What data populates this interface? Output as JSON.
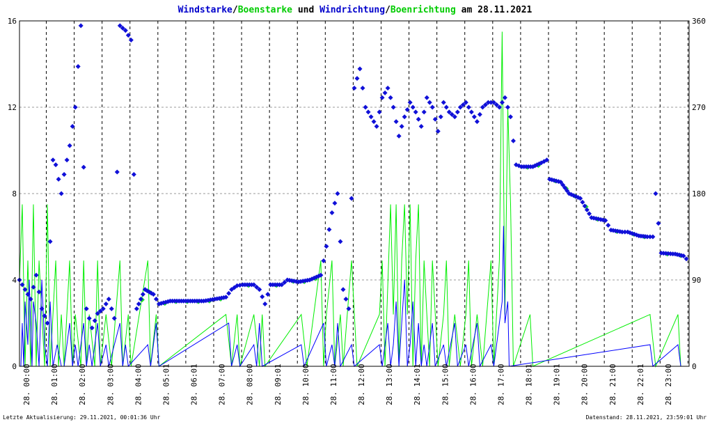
{
  "colors": {
    "wind": "#0000ff",
    "gust": "#00ee00",
    "direction": "#1010d8",
    "gust_direction": "#22ee22",
    "grid": "#000000"
  },
  "chart_data": {
    "type": "line",
    "title_parts": [
      "Windstarke",
      "/",
      "Boenstarke",
      " und ",
      "Windrichtung",
      "/",
      "Boenrichtung",
      " am 28.11.2021"
    ],
    "y_left": {
      "min": 0,
      "max": 16,
      "ticks": [
        "0",
        "4",
        "8",
        "12",
        "16"
      ]
    },
    "y_right": {
      "min": 0,
      "max": 360,
      "ticks": [
        "0",
        "90",
        "180",
        "270",
        "360"
      ]
    },
    "x_ticks": [
      "28. 00:00",
      "28. 01:00",
      "28. 02:00",
      "28. 03:00",
      "28. 04:00",
      "28. 05:01",
      "28. 06:01",
      "28. 07:00",
      "28. 08:00",
      "28. 09:01",
      "28. 10:00",
      "28. 11:00",
      "28. 12:00",
      "28. 13:00",
      "28. 14:01",
      "28. 15:00",
      "28. 16:00",
      "28. 17:00",
      "28. 18:01",
      "28. 19:01",
      "28. 20:00",
      "28. 21:00",
      "28. 22:01",
      "28. 23:00"
    ],
    "x_range_hours": [
      0,
      24
    ],
    "series": [
      {
        "name": "Windstarke",
        "kind": "speed",
        "points": [
          [
            0.05,
            0
          ],
          [
            0.1,
            2
          ],
          [
            0.15,
            0
          ],
          [
            0.2,
            3
          ],
          [
            0.3,
            1
          ],
          [
            0.35,
            4
          ],
          [
            0.45,
            0
          ],
          [
            0.5,
            3
          ],
          [
            0.6,
            2
          ],
          [
            0.7,
            0
          ],
          [
            0.8,
            4
          ],
          [
            0.9,
            1
          ],
          [
            1.0,
            0
          ],
          [
            1.1,
            3
          ],
          [
            1.2,
            0
          ],
          [
            1.35,
            1
          ],
          [
            1.5,
            0
          ],
          [
            1.6,
            0
          ],
          [
            1.8,
            2
          ],
          [
            1.9,
            0
          ],
          [
            2.0,
            1
          ],
          [
            2.1,
            0
          ],
          [
            2.3,
            2
          ],
          [
            2.4,
            0
          ],
          [
            2.5,
            1
          ],
          [
            2.6,
            0
          ],
          [
            2.8,
            2
          ],
          [
            2.9,
            0
          ],
          [
            3.1,
            1
          ],
          [
            3.2,
            0
          ],
          [
            3.6,
            2
          ],
          [
            3.7,
            0
          ],
          [
            3.8,
            1
          ],
          [
            3.9,
            0
          ],
          [
            4.6,
            1
          ],
          [
            4.7,
            0
          ],
          [
            4.9,
            2
          ],
          [
            5.0,
            0
          ],
          [
            7.5,
            2
          ],
          [
            7.6,
            0
          ],
          [
            7.8,
            1
          ],
          [
            7.9,
            0
          ],
          [
            8.4,
            1
          ],
          [
            8.5,
            0
          ],
          [
            8.6,
            2
          ],
          [
            8.7,
            0
          ],
          [
            10.1,
            1
          ],
          [
            10.2,
            0
          ],
          [
            10.9,
            2
          ],
          [
            11.0,
            0
          ],
          [
            11.2,
            1
          ],
          [
            11.3,
            0
          ],
          [
            11.4,
            2
          ],
          [
            11.5,
            0
          ],
          [
            11.9,
            1
          ],
          [
            12.0,
            0
          ],
          [
            12.9,
            1
          ],
          [
            13.0,
            0
          ],
          [
            13.2,
            2
          ],
          [
            13.3,
            0
          ],
          [
            13.4,
            1
          ],
          [
            13.5,
            3
          ],
          [
            13.6,
            0
          ],
          [
            13.7,
            2
          ],
          [
            13.8,
            4
          ],
          [
            13.9,
            0
          ],
          [
            14.0,
            1
          ],
          [
            14.1,
            3
          ],
          [
            14.2,
            0
          ],
          [
            14.3,
            2
          ],
          [
            14.4,
            0
          ],
          [
            14.5,
            1
          ],
          [
            14.6,
            0
          ],
          [
            14.8,
            2
          ],
          [
            14.9,
            0
          ],
          [
            15.2,
            1
          ],
          [
            15.3,
            0
          ],
          [
            15.6,
            2
          ],
          [
            15.7,
            0
          ],
          [
            16.0,
            1
          ],
          [
            16.1,
            0
          ],
          [
            16.4,
            2
          ],
          [
            16.5,
            0
          ],
          [
            16.9,
            1
          ],
          [
            17.0,
            0
          ],
          [
            17.3,
            3
          ],
          [
            17.35,
            6.5
          ],
          [
            17.4,
            2
          ],
          [
            17.5,
            3
          ],
          [
            17.55,
            0
          ],
          [
            22.6,
            1
          ],
          [
            22.7,
            0
          ],
          [
            23.6,
            1
          ],
          [
            23.7,
            0
          ]
        ]
      },
      {
        "name": "Boenstarke",
        "kind": "gust",
        "points": [
          [
            0.0,
            4
          ],
          [
            0.1,
            7.5
          ],
          [
            0.2,
            0
          ],
          [
            0.3,
            4.9
          ],
          [
            0.4,
            0
          ],
          [
            0.5,
            7.5
          ],
          [
            0.6,
            0
          ],
          [
            0.7,
            4.9
          ],
          [
            0.8,
            2.4
          ],
          [
            0.9,
            0
          ],
          [
            1.0,
            7.5
          ],
          [
            1.1,
            0
          ],
          [
            1.2,
            2.4
          ],
          [
            1.3,
            4.9
          ],
          [
            1.4,
            0
          ],
          [
            1.5,
            2.4
          ],
          [
            1.6,
            0
          ],
          [
            1.8,
            4.9
          ],
          [
            1.9,
            0
          ],
          [
            2.0,
            2.4
          ],
          [
            2.2,
            0
          ],
          [
            2.3,
            4.9
          ],
          [
            2.4,
            0
          ],
          [
            2.5,
            2.4
          ],
          [
            2.7,
            0
          ],
          [
            2.8,
            4.9
          ],
          [
            2.9,
            0
          ],
          [
            3.1,
            2.4
          ],
          [
            3.3,
            0
          ],
          [
            3.6,
            4.9
          ],
          [
            3.7,
            0
          ],
          [
            3.9,
            2.4
          ],
          [
            4.0,
            0
          ],
          [
            4.6,
            4.9
          ],
          [
            4.7,
            0
          ],
          [
            4.9,
            2.4
          ],
          [
            5.0,
            0
          ],
          [
            7.4,
            2.4
          ],
          [
            7.6,
            0
          ],
          [
            7.8,
            2.4
          ],
          [
            7.9,
            0
          ],
          [
            8.4,
            2.4
          ],
          [
            8.6,
            0
          ],
          [
            8.7,
            2.4
          ],
          [
            8.8,
            0
          ],
          [
            10.1,
            2.4
          ],
          [
            10.3,
            0
          ],
          [
            10.8,
            4.9
          ],
          [
            10.9,
            0
          ],
          [
            11.0,
            2.4
          ],
          [
            11.2,
            4.9
          ],
          [
            11.3,
            0
          ],
          [
            11.5,
            2.4
          ],
          [
            11.6,
            0
          ],
          [
            11.9,
            4.9
          ],
          [
            12.1,
            0
          ],
          [
            12.9,
            2.4
          ],
          [
            13.0,
            4.9
          ],
          [
            13.1,
            0
          ],
          [
            13.3,
            7.5
          ],
          [
            13.4,
            2.4
          ],
          [
            13.5,
            7.5
          ],
          [
            13.6,
            0
          ],
          [
            13.7,
            4.9
          ],
          [
            13.8,
            7.5
          ],
          [
            13.9,
            2.4
          ],
          [
            14.0,
            7.5
          ],
          [
            14.1,
            0
          ],
          [
            14.2,
            4.9
          ],
          [
            14.3,
            7.5
          ],
          [
            14.4,
            0
          ],
          [
            14.5,
            4.9
          ],
          [
            14.6,
            2.4
          ],
          [
            14.7,
            0
          ],
          [
            14.8,
            4.9
          ],
          [
            15.0,
            0
          ],
          [
            15.2,
            2.4
          ],
          [
            15.3,
            4.9
          ],
          [
            15.4,
            0
          ],
          [
            15.6,
            2.4
          ],
          [
            15.8,
            0
          ],
          [
            16.0,
            2.4
          ],
          [
            16.1,
            4.9
          ],
          [
            16.2,
            0
          ],
          [
            16.4,
            2.4
          ],
          [
            16.6,
            0
          ],
          [
            16.9,
            4.9
          ],
          [
            17.0,
            0
          ],
          [
            17.2,
            4.9
          ],
          [
            17.3,
            15.5
          ],
          [
            17.4,
            2.4
          ],
          [
            17.5,
            12
          ],
          [
            17.6,
            7.5
          ],
          [
            17.7,
            0
          ],
          [
            18.3,
            2.4
          ],
          [
            18.4,
            0
          ],
          [
            22.6,
            2.4
          ],
          [
            22.8,
            0
          ],
          [
            23.6,
            2.4
          ],
          [
            23.7,
            0
          ]
        ]
      },
      {
        "name": "Windrichtung",
        "kind": "direction",
        "points": [
          [
            0.0,
            90
          ],
          [
            0.2,
            80
          ],
          [
            0.4,
            70
          ],
          [
            0.6,
            95
          ],
          [
            0.8,
            60
          ],
          [
            1.0,
            45
          ],
          [
            1.2,
            215
          ],
          [
            1.3,
            210
          ],
          [
            1.5,
            180
          ],
          [
            1.6,
            200
          ],
          [
            1.8,
            230
          ],
          [
            2.0,
            270
          ],
          [
            2.2,
            355
          ],
          [
            2.4,
            60
          ],
          [
            2.6,
            40
          ],
          [
            2.8,
            55
          ],
          [
            3.0,
            60
          ],
          [
            3.2,
            70
          ],
          [
            3.4,
            50
          ],
          [
            3.6,
            355
          ],
          [
            3.8,
            350
          ],
          [
            4.0,
            340
          ],
          [
            4.2,
            60
          ],
          [
            4.5,
            80
          ],
          [
            4.8,
            75
          ],
          [
            5.0,
            65
          ],
          [
            5.4,
            68
          ],
          [
            5.8,
            68
          ],
          [
            6.2,
            68
          ],
          [
            6.6,
            68
          ],
          [
            7.0,
            70
          ],
          [
            7.4,
            72
          ],
          [
            7.6,
            80
          ],
          [
            7.8,
            84
          ],
          [
            8.0,
            85
          ],
          [
            8.4,
            85
          ],
          [
            8.6,
            80
          ],
          [
            8.8,
            65
          ],
          [
            9.0,
            85
          ],
          [
            9.4,
            85
          ],
          [
            9.6,
            90
          ],
          [
            10.0,
            88
          ],
          [
            10.4,
            90
          ],
          [
            10.8,
            95
          ],
          [
            11.0,
            125
          ],
          [
            11.2,
            160
          ],
          [
            11.4,
            180
          ],
          [
            11.6,
            80
          ],
          [
            11.8,
            60
          ],
          [
            12.0,
            290
          ],
          [
            12.2,
            310
          ],
          [
            12.4,
            270
          ],
          [
            12.6,
            260
          ],
          [
            12.8,
            250
          ],
          [
            13.0,
            280
          ],
          [
            13.2,
            290
          ],
          [
            13.4,
            270
          ],
          [
            13.6,
            240
          ],
          [
            13.8,
            260
          ],
          [
            14.0,
            275
          ],
          [
            14.2,
            265
          ],
          [
            14.4,
            250
          ],
          [
            14.6,
            280
          ],
          [
            14.8,
            270
          ],
          [
            15.0,
            245
          ],
          [
            15.2,
            275
          ],
          [
            15.4,
            265
          ],
          [
            15.6,
            260
          ],
          [
            15.8,
            270
          ],
          [
            16.0,
            275
          ],
          [
            16.2,
            265
          ],
          [
            16.4,
            255
          ],
          [
            16.6,
            270
          ],
          [
            16.8,
            275
          ],
          [
            17.0,
            275
          ],
          [
            17.2,
            270
          ],
          [
            17.4,
            280
          ],
          [
            17.6,
            260
          ],
          [
            17.8,
            210
          ],
          [
            18.0,
            208
          ],
          [
            18.4,
            208
          ],
          [
            18.7,
            212
          ],
          [
            18.9,
            215
          ],
          [
            19.0,
            195
          ],
          [
            19.4,
            192
          ],
          [
            19.7,
            180
          ],
          [
            20.1,
            175
          ],
          [
            20.5,
            155
          ],
          [
            21.0,
            152
          ],
          [
            21.2,
            142
          ],
          [
            21.6,
            140
          ],
          [
            21.8,
            140
          ],
          [
            22.2,
            136
          ],
          [
            22.5,
            135
          ],
          [
            22.7,
            135
          ],
          [
            22.8,
            180
          ],
          [
            23.0,
            118
          ],
          [
            23.5,
            117
          ],
          [
            23.8,
            115
          ],
          [
            23.9,
            112
          ]
        ]
      }
    ],
    "footer_left": "Letzte Aktualisierung: 29.11.2021, 00:01:36 Uhr",
    "footer_right": "Datenstand: 28.11.2021, 23:59:01 Uhr"
  }
}
